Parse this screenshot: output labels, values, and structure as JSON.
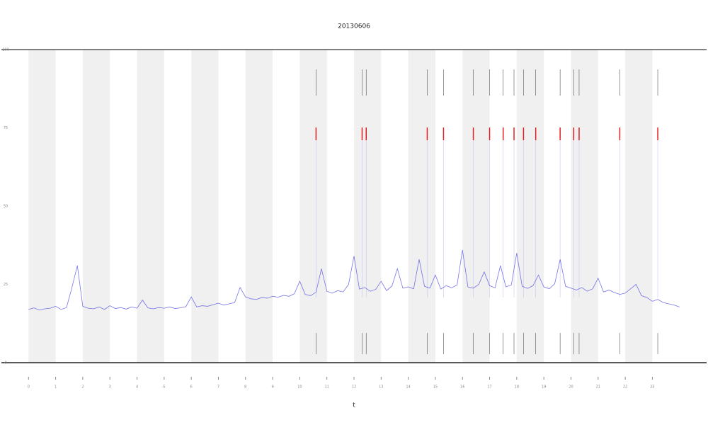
{
  "chart_data": {
    "type": "line",
    "title": "20130606",
    "x_label": "t",
    "xlim": [
      -1,
      25
    ],
    "ylim": [
      0,
      100
    ],
    "xticks": [
      0,
      1,
      2,
      3,
      4,
      5,
      6,
      7,
      8,
      9,
      10,
      11,
      12,
      13,
      14,
      15,
      16,
      17,
      18,
      19,
      20,
      21,
      22,
      23
    ],
    "yticks": [
      0,
      25,
      50,
      75,
      100
    ],
    "bands": true,
    "series": [
      {
        "color": "#3a3adf",
        "x": [
          0,
          0.2,
          0.4,
          0.6,
          0.8,
          1,
          1.2,
          1.4,
          1.6,
          1.8,
          2,
          2.2,
          2.4,
          2.6,
          2.8,
          3,
          3.2,
          3.4,
          3.6,
          3.8,
          4,
          4.2,
          4.4,
          4.6,
          4.8,
          5,
          5.2,
          5.4,
          5.6,
          5.8,
          6,
          6.2,
          6.4,
          6.6,
          6.8,
          7,
          7.2,
          7.4,
          7.6,
          7.8,
          8,
          8.2,
          8.4,
          8.6,
          8.8,
          9,
          9.2,
          9.4,
          9.6,
          9.8,
          10,
          10.2,
          10.4,
          10.6,
          10.8,
          11,
          11.2,
          11.4,
          11.6,
          11.8,
          12,
          12.2,
          12.4,
          12.6,
          12.8,
          13,
          13.2,
          13.4,
          13.6,
          13.8,
          14,
          14.2,
          14.4,
          14.6,
          14.8,
          15,
          15.2,
          15.4,
          15.6,
          15.8,
          16,
          16.2,
          16.4,
          16.6,
          16.8,
          17,
          17.2,
          17.4,
          17.6,
          17.8,
          18,
          18.2,
          18.4,
          18.6,
          18.8,
          19,
          19.2,
          19.4,
          19.6,
          19.8,
          20,
          20.2,
          20.4,
          20.6,
          20.8,
          21,
          21.2,
          21.4,
          21.6,
          21.8,
          22,
          22.2,
          22.4,
          22.6,
          22.8,
          23,
          23.2,
          23.4,
          23.6,
          23.8,
          24
        ],
        "values": [
          17,
          17.5,
          16.8,
          17.2,
          17.4,
          18,
          17,
          17.6,
          24,
          31,
          18,
          17.4,
          17.2,
          17.8,
          17,
          18.2,
          17.3,
          17.6,
          17.1,
          17.8,
          17.4,
          20,
          17.5,
          17.2,
          17.6,
          17.4,
          17.8,
          17.3,
          17.5,
          17.9,
          21,
          17.8,
          18.2,
          18,
          18.5,
          19,
          18.4,
          18.8,
          19.2,
          24,
          21,
          20.4,
          20.2,
          20.8,
          20.6,
          21.2,
          20.9,
          21.5,
          21.2,
          22,
          26,
          21.8,
          21.4,
          22.5,
          30,
          22.8,
          22.2,
          23,
          22.6,
          25,
          34,
          23.5,
          24,
          22.8,
          23.4,
          26,
          23,
          24.5,
          30,
          23.8,
          24.2,
          23.6,
          33,
          24.4,
          23.8,
          28,
          23.5,
          24.6,
          23.9,
          24.8,
          36,
          24.2,
          23.8,
          25,
          29,
          24.6,
          23.9,
          31,
          24.2,
          24.8,
          35,
          24.4,
          23.7,
          24.6,
          28,
          24.2,
          23.6,
          25.2,
          33,
          24.4,
          23.8,
          23.2,
          24,
          22.8,
          23.6,
          27,
          22.6,
          23.2,
          22.4,
          21.8,
          22.2,
          23.6,
          25,
          21.4,
          20.8,
          19.6,
          20.2,
          19.2,
          18.8,
          18.4,
          17.8
        ]
      }
    ],
    "event_x": [
      10.6,
      12.3,
      12.45,
      14.7,
      15.3,
      16.4,
      17.0,
      17.5,
      17.9,
      18.25,
      18.7,
      19.6,
      20.1,
      20.3,
      21.8,
      23.2
    ]
  }
}
